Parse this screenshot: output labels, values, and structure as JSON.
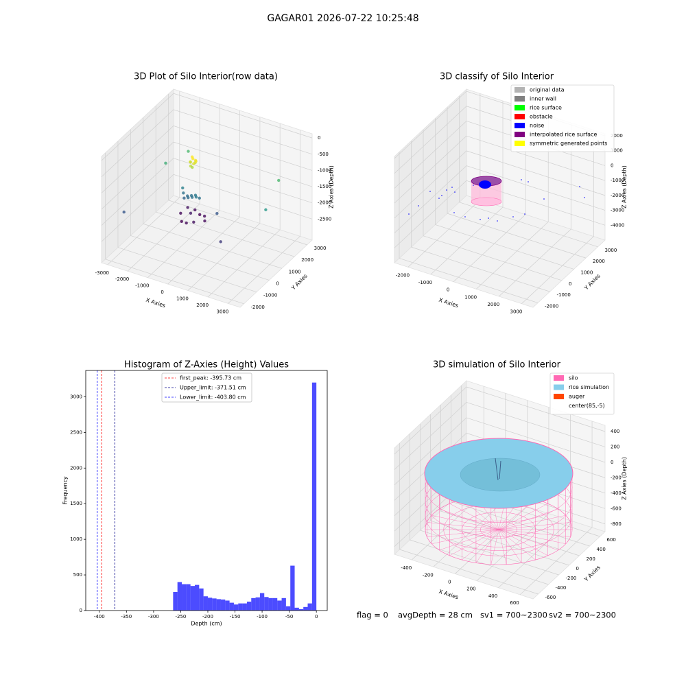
{
  "title": "GAGAR01 2026-07-22 10:25:48",
  "footer": [
    "flag = 0",
    "avgDepth = 28 cm",
    "sv1 = 700~2300",
    "sv2 = 700~2300"
  ],
  "chart_data": [
    {
      "type": "scatter3d",
      "title": "3D Plot of Silo Interior(row data)",
      "xlabel": "X Axies",
      "ylabel": "Y Axies",
      "zlabel": "Z Axies (Depth)",
      "xlim": [
        -3300,
        3600
      ],
      "ylim": [
        -2300,
        3400
      ],
      "zlim": [
        -3150,
        130
      ],
      "xticks": [
        -3000,
        -2000,
        -1000,
        0,
        1000,
        2000,
        3000
      ],
      "yticks": [
        -2000,
        -1000,
        0,
        1000,
        2000,
        3000
      ],
      "zticks": [
        0,
        -500,
        -1000,
        -1500,
        -2000,
        -2500
      ],
      "colormap": "viridis",
      "x": [
        -700,
        -600,
        -800,
        -650,
        -750,
        -550,
        -850,
        -700,
        -600,
        -800,
        -1300,
        -1100,
        -900,
        -700,
        -500,
        -1200,
        -1000,
        -800,
        -600,
        -1400,
        -1500,
        -1200,
        -900,
        -600,
        -300,
        -1400,
        -1100,
        -800,
        -500,
        -1000,
        -3000,
        -2500,
        -2000,
        2500,
        1500,
        500,
        2800
      ],
      "y": [
        800,
        850,
        750,
        900,
        700,
        800,
        850,
        750,
        700,
        900,
        1000,
        1000,
        1000,
        1000,
        1000,
        900,
        900,
        900,
        900,
        1100,
        1100,
        700,
        600,
        700,
        1100,
        1500,
        1600,
        1500,
        1400,
        1100,
        -1000,
        1500,
        2500,
        2500,
        -500,
        800,
        1000
      ],
      "z": [
        -550,
        -600,
        -650,
        -700,
        -750,
        -600,
        -700,
        -800,
        -650,
        -550,
        -1800,
        -1850,
        -1800,
        -1750,
        -1800,
        -1900,
        -1850,
        -1800,
        -1750,
        -1700,
        -2500,
        -2550,
        -2500,
        -2450,
        -2500,
        -2450,
        -2500,
        -2550,
        -2500,
        -2400,
        -2000,
        -1300,
        -1200,
        -1200,
        -2200,
        -2000,
        -1500
      ]
    },
    {
      "type": "scatter3d",
      "title": "3D classify of Silo Interior",
      "xlabel": "X Axies",
      "ylabel": "Y Axies",
      "zlabel": "Z Axies (Depth)",
      "xlim": [
        -2600,
        3500
      ],
      "ylim": [
        -2400,
        3600
      ],
      "zlim": [
        -5000,
        2140
      ],
      "xticks": [
        -2000,
        -1000,
        0,
        1000,
        2000,
        3000
      ],
      "yticks": [
        -2000,
        -1000,
        0,
        1000,
        2000,
        3000
      ],
      "zticks": [
        2000,
        1000,
        0,
        -1000,
        -2000,
        -3000,
        -4000
      ],
      "legend": "upper right",
      "series": [
        {
          "name": "original data",
          "color": "#b3b3b3"
        },
        {
          "name": "inner wall",
          "color": "#808080"
        },
        {
          "name": "rice surface",
          "color": "#00ff00"
        },
        {
          "name": "obstacle",
          "color": "#ff0000"
        },
        {
          "name": "noise",
          "color": "#0000ff"
        },
        {
          "name": "interpolated rice surface",
          "color": "#800080"
        },
        {
          "name": "symmetric generated points",
          "color": "#ffff00"
        }
      ]
    },
    {
      "type": "histogram",
      "title": "Histogram of Z-Axies (Height) Values",
      "xlabel": "Depth (cm)",
      "ylabel": "Frequency",
      "color": "#0000ff",
      "alpha": 0.7,
      "xlim": [
        -425,
        20
      ],
      "ylim": [
        0,
        3370
      ],
      "xticks": [
        -400,
        -350,
        -300,
        -250,
        -200,
        -150,
        -100,
        -50,
        0
      ],
      "yticks": [
        0,
        500,
        1000,
        1500,
        2000,
        2500,
        3000
      ],
      "bins": [
        -264,
        -256,
        -248,
        -240,
        -232,
        -224,
        -216,
        -208,
        -200,
        -192,
        -184,
        -176,
        -168,
        -160,
        -152,
        -144,
        -136,
        -128,
        -120,
        -112,
        -104,
        -96,
        -88,
        -80,
        -72,
        -64,
        -56,
        -48,
        -40,
        -32,
        -24,
        -16,
        -8,
        0
      ],
      "values": [
        260,
        400,
        370,
        370,
        345,
        360,
        310,
        200,
        180,
        170,
        160,
        155,
        140,
        110,
        85,
        100,
        100,
        125,
        175,
        185,
        245,
        190,
        175,
        175,
        140,
        175,
        60,
        630,
        40,
        20,
        50,
        100,
        3200
      ],
      "lines": [
        {
          "name": "first_peak: -395.73 cm",
          "value": -395.73,
          "color": "#ff0000"
        },
        {
          "name": "Upper_limit: -371.51 cm",
          "value": -371.51,
          "color": "#00008b"
        },
        {
          "name": "Lower_limit: -403.80 cm",
          "value": -403.8,
          "color": "#0000ff"
        }
      ]
    },
    {
      "type": "surface3d",
      "title": "3D simulation of Silo Interior",
      "xlabel": "X Axies",
      "ylabel": "Y Axies",
      "zlabel": "Z Axies (Depth)",
      "xlim": [
        -560,
        720
      ],
      "ylim": [
        -700,
        700
      ],
      "zlim": [
        -900,
        480
      ],
      "xticks": [
        -400,
        -200,
        0,
        200,
        400,
        600
      ],
      "yticks": [
        -600,
        -400,
        -200,
        0,
        200,
        400,
        600
      ],
      "zticks": [
        400,
        200,
        0,
        -200,
        -400,
        -600,
        -800
      ],
      "legend": "upper right",
      "series": [
        {
          "name": "silo",
          "color": "#ff69b4"
        },
        {
          "name": "rice simulation",
          "color": "#87ceeb"
        },
        {
          "name": "auger",
          "color": "#ff4500"
        },
        {
          "name": "center(85,-5)",
          "color": "#ffffff"
        }
      ]
    }
  ]
}
